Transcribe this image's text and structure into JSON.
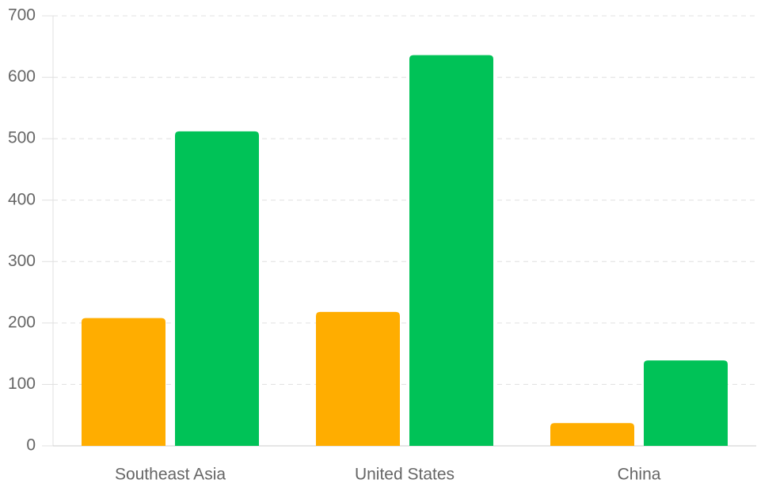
{
  "chart_data": {
    "type": "bar",
    "categories": [
      "Southeast Asia",
      "United States",
      "China"
    ],
    "series": [
      {
        "color": "#ffad00",
        "values": [
          208,
          218,
          37
        ]
      },
      {
        "color": "#00c257",
        "values": [
          512,
          636,
          139
        ]
      }
    ],
    "ylim": [
      0,
      700
    ],
    "yticks": [
      0,
      100,
      200,
      300,
      400,
      500,
      600,
      700
    ],
    "grid": true
  }
}
